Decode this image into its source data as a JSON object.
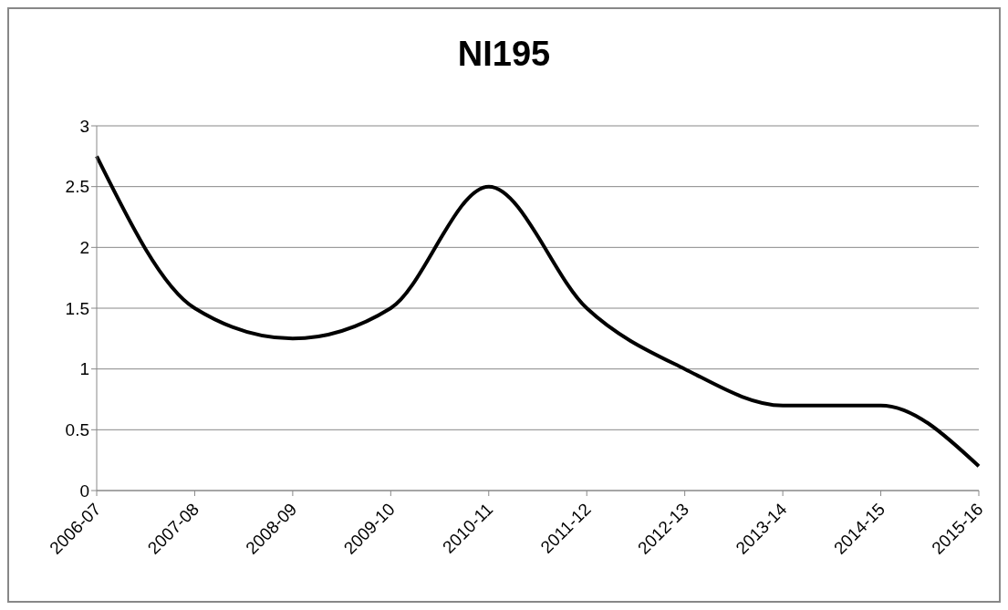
{
  "chart_data": {
    "type": "line",
    "title": "NI195",
    "categories": [
      "2006-07",
      "2007-08",
      "2008-09",
      "2009-10",
      "2010-11",
      "2011-12",
      "2012-13",
      "2013-14",
      "2014-15",
      "2015-16"
    ],
    "series": [
      {
        "color": "#000000",
        "values": [
          2.75,
          1.5,
          1.25,
          1.5,
          2.5,
          1.5,
          1.0,
          0.7,
          0.7,
          0.2
        ]
      }
    ],
    "ylim": [
      0,
      3
    ],
    "yticks": [
      0,
      0.5,
      1,
      1.5,
      2,
      2.5,
      3
    ],
    "grid": "y",
    "legend": false,
    "marker": "none",
    "line_style": "solid"
  }
}
